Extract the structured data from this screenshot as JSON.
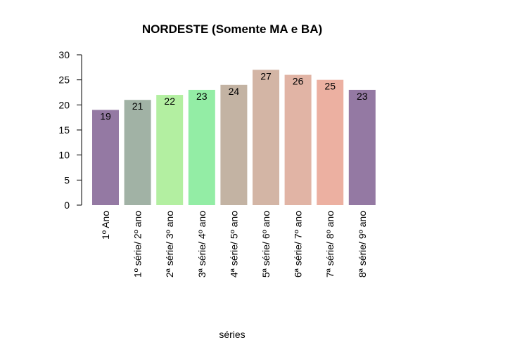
{
  "chart_data": {
    "type": "bar",
    "title": "NORDESTE (Somente MA e BA)",
    "xlabel": "séries",
    "ylabel": "",
    "ylim": [
      0,
      30
    ],
    "yticks": [
      0,
      5,
      10,
      15,
      20,
      25,
      30
    ],
    "grid": false,
    "legend": "none",
    "categories": [
      "1º Ano",
      "1º série/ 2º ano",
      "2ª série/ 3º ano",
      "3ª série/ 4º ano",
      "4ª série/ 5º ano",
      "5ª série/ 6º ano",
      "6ª série/ 7º ano",
      "7ª série/ 8º ano",
      "8ª série/ 9º ano"
    ],
    "values": [
      19,
      21,
      22,
      23,
      24,
      27,
      26,
      25,
      23
    ],
    "colors": [
      "#9479a3",
      "#a1b2a5",
      "#b3efa1",
      "#93eda5",
      "#c3b3a3",
      "#d3b5a5",
      "#e1b4a5",
      "#ecb0a1",
      "#9479a3"
    ]
  }
}
